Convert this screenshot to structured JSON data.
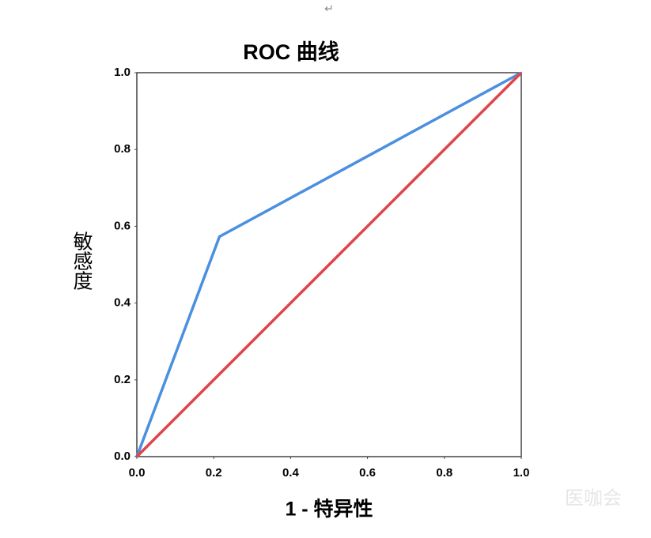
{
  "return_mark": "↵",
  "watermark": "医咖会",
  "chart_data": {
    "type": "line",
    "title": "ROC 曲线",
    "x_label": "1 - 特异性",
    "y_label": "敏感度",
    "series": [
      {
        "color": "#4a8fe0",
        "x": [
          0,
          0.215,
          1
        ],
        "values": [
          0,
          0.573,
          1
        ]
      },
      {
        "color": "#e04448",
        "x": [
          0,
          1
        ],
        "values": [
          0,
          1
        ]
      }
    ],
    "xlim": [
      0,
      1
    ],
    "ylim": [
      0,
      1
    ],
    "xticks": [
      {
        "value": 0,
        "label": "0.0"
      },
      0.2,
      0.4,
      0.6,
      0.8,
      {
        "value": 1,
        "label": "1.0"
      }
    ],
    "yticks": [
      {
        "value": 0,
        "label": "0.0"
      },
      0.2,
      0.4,
      0.6,
      0.8,
      {
        "value": 1,
        "label": "1.0"
      }
    ],
    "grid": false
  }
}
